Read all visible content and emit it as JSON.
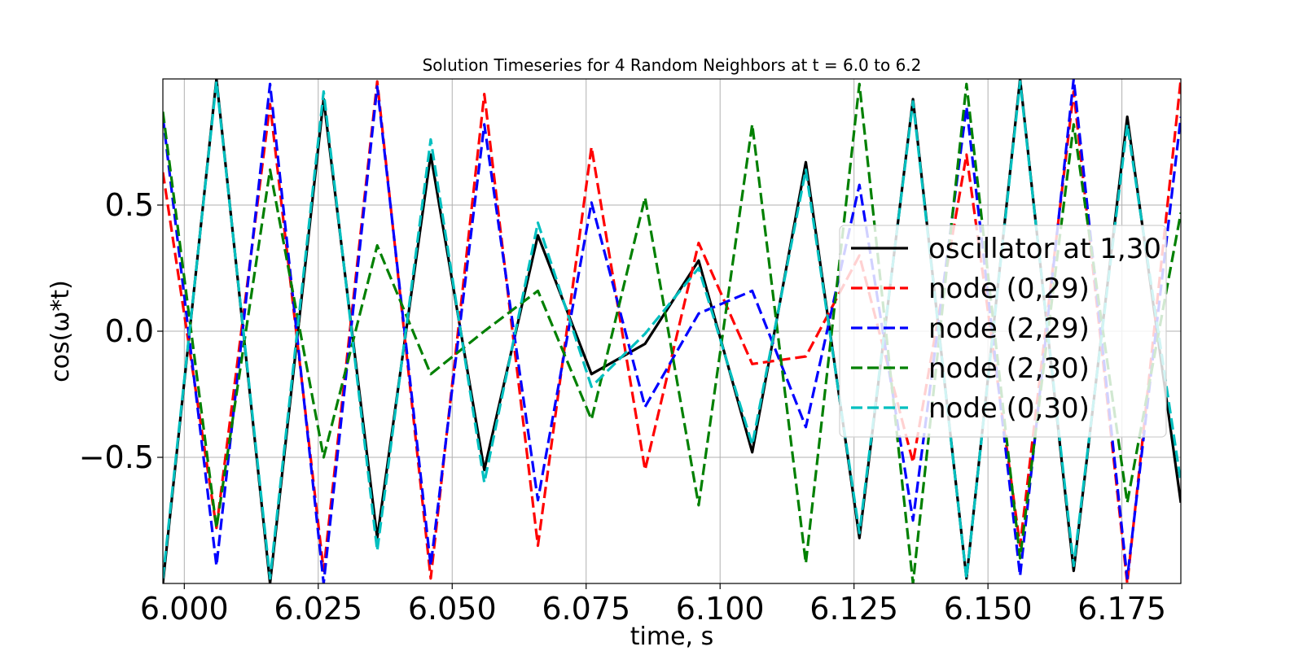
{
  "chart_data": {
    "type": "line",
    "title": "Solution Timeseries for 4 Random Neighbors at t = 6.0 to 6.2",
    "xlabel": "time, s",
    "ylabel": "cos(ω*t)",
    "xlim": [
      5.996,
      6.186
    ],
    "ylim": [
      -1.0,
      1.0
    ],
    "grid": true,
    "legend_position": "right",
    "x_ticks": [
      "6.000",
      "6.025",
      "6.050",
      "6.075",
      "6.100",
      "6.125",
      "6.150",
      "6.175"
    ],
    "x_tick_values": [
      6.0,
      6.025,
      6.05,
      6.075,
      6.1,
      6.125,
      6.15,
      6.175
    ],
    "y_ticks": [
      "0.5",
      "0.0",
      "−0.5"
    ],
    "y_tick_values": [
      0.5,
      0.0,
      -0.5
    ],
    "x": [
      5.996,
      6.006,
      6.016,
      6.026,
      6.036,
      6.046,
      6.056,
      6.066,
      6.076,
      6.086,
      6.096,
      6.106,
      6.116,
      6.126,
      6.136,
      6.146,
      6.156,
      6.166,
      6.176,
      6.186
    ],
    "series": [
      {
        "name": "oscillator at 1,30",
        "color": "#000000",
        "dash": "solid",
        "values": [
          -1.0,
          1.0,
          -1.0,
          0.92,
          -0.82,
          0.7,
          -0.55,
          0.38,
          -0.17,
          -0.05,
          0.28,
          -0.48,
          0.67,
          -0.82,
          0.92,
          -0.98,
          1.0,
          -0.95,
          0.85,
          -0.68
        ]
      },
      {
        "name": "node (0,29)",
        "color": "#ff0000",
        "dash": "dashed",
        "values": [
          0.63,
          -0.78,
          0.9,
          -0.95,
          0.99,
          -0.98,
          0.94,
          -0.85,
          0.73,
          -0.55,
          0.35,
          -0.13,
          -0.1,
          0.3,
          -0.52,
          0.7,
          -0.85,
          0.95,
          -1.0,
          1.0
        ]
      },
      {
        "name": "node (2,29)",
        "color": "#0000ff",
        "dash": "dashed",
        "values": [
          0.85,
          -0.93,
          0.98,
          -1.0,
          0.97,
          -0.93,
          0.82,
          -0.67,
          0.51,
          -0.3,
          0.07,
          0.16,
          -0.38,
          0.58,
          -0.75,
          0.89,
          -0.97,
          1.0,
          -0.98,
          0.85
        ]
      },
      {
        "name": "node (2,30)",
        "color": "#008000",
        "dash": "dashed",
        "values": [
          0.87,
          -0.78,
          0.64,
          -0.5,
          0.34,
          -0.17,
          0.0,
          0.16,
          -0.35,
          0.53,
          -0.69,
          0.82,
          -0.92,
          0.98,
          -1.0,
          0.98,
          -0.9,
          0.82,
          -0.68,
          0.47
        ]
      },
      {
        "name": "node (0,30)",
        "color": "#00bfbf",
        "dash": "dashed",
        "values": [
          -0.98,
          0.99,
          -0.98,
          0.95,
          -0.87,
          0.76,
          -0.6,
          0.43,
          -0.22,
          -0.01,
          0.25,
          -0.45,
          0.64,
          -0.8,
          0.91,
          -0.98,
          0.99,
          -0.93,
          0.82,
          -0.6
        ]
      }
    ]
  }
}
